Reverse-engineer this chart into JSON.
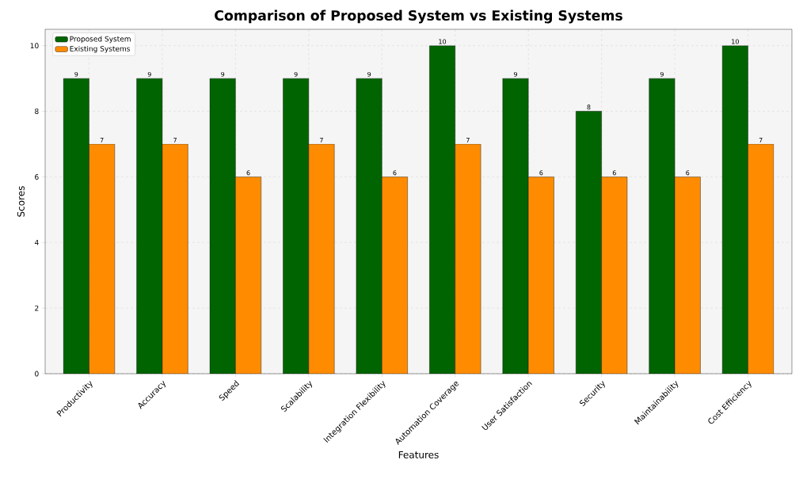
{
  "chart_data": {
    "type": "bar",
    "title": "Comparison of Proposed System vs Existing Systems",
    "xlabel": "Features",
    "ylabel": "Scores",
    "categories": [
      "Productivity",
      "Accuracy",
      "Speed",
      "Scalability",
      "Integration Flexibility",
      "Automation Coverage",
      "User Satisfaction",
      "Security",
      "Maintainability",
      "Cost Efficiency"
    ],
    "series": [
      {
        "name": "Proposed System",
        "color": "#006400",
        "values": [
          9,
          9,
          9,
          9,
          9,
          10,
          9,
          8,
          9,
          10
        ]
      },
      {
        "name": "Existing Systems",
        "color": "#ff8c00",
        "values": [
          7,
          7,
          6,
          7,
          6,
          7,
          6,
          6,
          6,
          7
        ]
      }
    ],
    "ylim": [
      0,
      10.5
    ],
    "yticks": [
      0,
      2,
      4,
      6,
      8,
      10
    ],
    "grid": true,
    "legend": "top left",
    "data_labels": true
  }
}
